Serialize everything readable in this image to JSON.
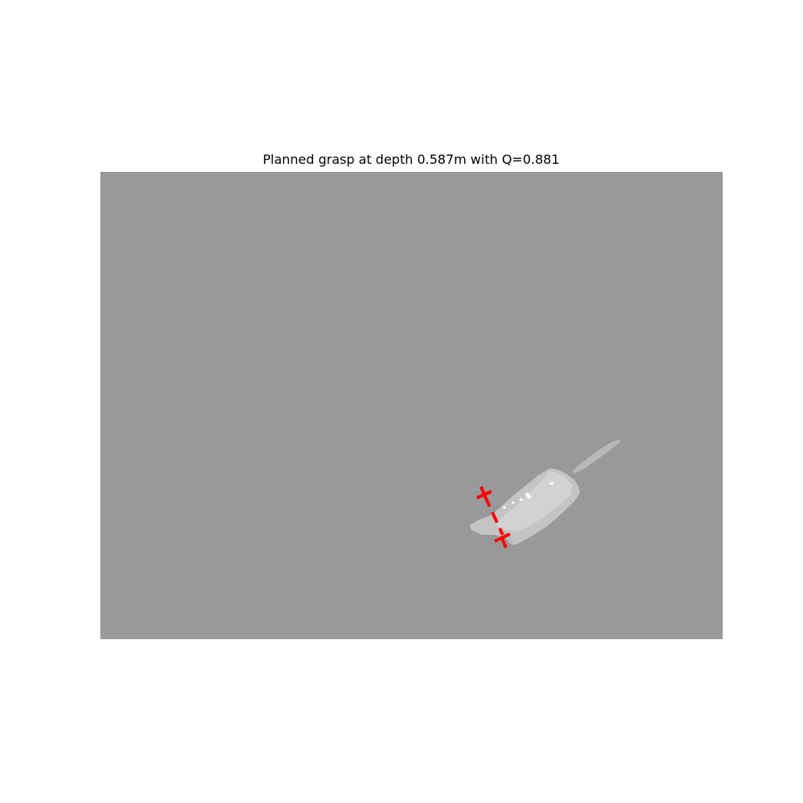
{
  "figure": {
    "title": "Planned grasp at depth 0.587m with Q=0.881"
  },
  "image": {
    "background_color": "#999999",
    "object_color": "#c4c4c4",
    "object_highlight_color": "#d2d2d2",
    "object_shadow_color": "#b8b8b8",
    "specular_color": "#ffffff",
    "grasp_color": "#ff0000"
  }
}
